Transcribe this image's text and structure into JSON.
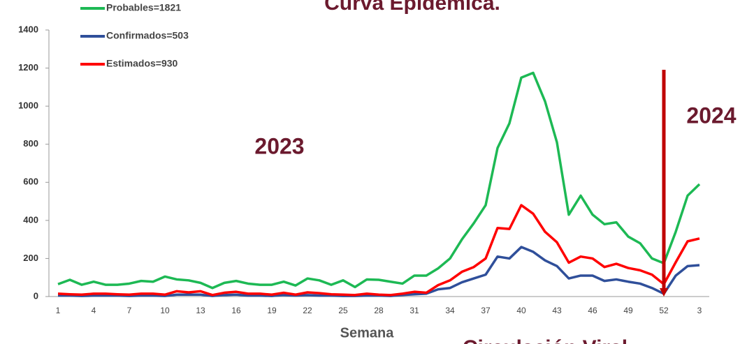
{
  "chart_data": {
    "type": "line",
    "title": "Curva Epidémica.",
    "annotations": [
      "2023",
      "2024"
    ],
    "x_label": "Semana",
    "subtitle": "Circulación Viral",
    "categories": [
      "1",
      null,
      null,
      "4",
      null,
      null,
      "7",
      null,
      null,
      "10",
      null,
      null,
      "13",
      null,
      null,
      "16",
      null,
      null,
      "19",
      null,
      null,
      "22",
      null,
      null,
      "25",
      null,
      null,
      "28",
      null,
      null,
      "31",
      null,
      null,
      "34",
      null,
      null,
      "37",
      null,
      null,
      "40",
      null,
      null,
      "43",
      null,
      null,
      "46",
      null,
      null,
      "49",
      null,
      null,
      "52",
      null,
      null,
      "3"
    ],
    "series": [
      {
        "name": "Probables=1821",
        "color": "#1db954",
        "values": [
          65,
          88,
          62,
          78,
          62,
          62,
          68,
          82,
          78,
          105,
          90,
          85,
          72,
          45,
          72,
          82,
          68,
          62,
          62,
          78,
          58,
          95,
          85,
          62,
          85,
          50,
          90,
          88,
          78,
          68,
          110,
          110,
          148,
          200,
          300,
          385,
          480,
          780,
          910,
          1150,
          1175,
          1025,
          810,
          430,
          530,
          430,
          380,
          390,
          315,
          280,
          200,
          175,
          340,
          530,
          590
        ]
      },
      {
        "name": "Confirmados=503",
        "color": "#2f4f9a",
        "values": [
          5,
          5,
          3,
          5,
          5,
          5,
          3,
          5,
          5,
          3,
          10,
          10,
          10,
          3,
          8,
          10,
          5,
          5,
          3,
          8,
          5,
          8,
          5,
          5,
          3,
          3,
          5,
          5,
          3,
          8,
          12,
          15,
          38,
          45,
          75,
          95,
          115,
          210,
          200,
          260,
          235,
          190,
          160,
          95,
          110,
          110,
          82,
          90,
          78,
          68,
          45,
          15,
          110,
          160,
          165
        ]
      },
      {
        "name": "Estimados=930",
        "color": "#ff0000",
        "values": [
          15,
          12,
          10,
          15,
          15,
          12,
          10,
          15,
          15,
          10,
          28,
          22,
          28,
          8,
          20,
          25,
          15,
          15,
          10,
          20,
          10,
          22,
          18,
          12,
          10,
          8,
          15,
          10,
          8,
          15,
          25,
          20,
          60,
          85,
          130,
          155,
          200,
          360,
          355,
          480,
          435,
          340,
          285,
          178,
          210,
          200,
          155,
          172,
          150,
          138,
          115,
          65,
          180,
          290,
          305
        ]
      }
    ],
    "ylim": [
      0,
      1400
    ],
    "yticks": [
      0,
      200,
      400,
      600,
      800,
      1000,
      1200,
      1400
    ]
  }
}
